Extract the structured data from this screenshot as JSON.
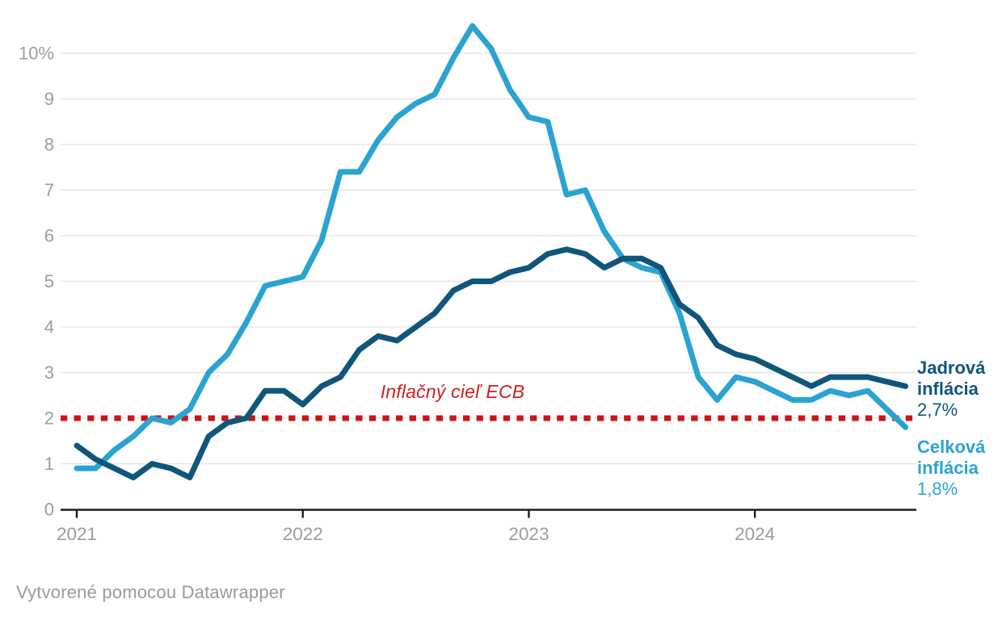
{
  "colors": {
    "headline_line": "#2BA3D2",
    "core_line": "#0F567A",
    "target_red": "#CC1414",
    "target_text_red": "#CF2020",
    "grid": "#E5E5E5",
    "axis_line": "#1A1C1F",
    "axis_text": "#9C9C9C",
    "footer_text": "#9A9A9A"
  },
  "chart_data": {
    "type": "line",
    "title": "",
    "xlabel": "",
    "ylabel": "",
    "x_unit": "month",
    "x_start": "2021-01",
    "x_tick_labels": [
      "2021",
      "2022",
      "2023",
      "2024"
    ],
    "x_tick_month_index": [
      0,
      12,
      24,
      36
    ],
    "y_ticks": [
      0,
      1,
      2,
      3,
      4,
      5,
      6,
      7,
      8,
      9,
      10
    ],
    "y_tick_labels": [
      "0",
      "1",
      "2",
      "3",
      "4",
      "5",
      "6",
      "7",
      "8",
      "9",
      "10%"
    ],
    "ylim": [
      0,
      10.7
    ],
    "grid": "horizontal",
    "legend_position": "end-of-line-labels-right",
    "series": [
      {
        "id": "celkova",
        "name": "Celková inflácia",
        "color": "#2BA3D2",
        "end_label": "Celková inflácia",
        "end_value_label": "1,8%",
        "values": [
          0.9,
          0.9,
          1.3,
          1.6,
          2.0,
          1.9,
          2.2,
          3.0,
          3.4,
          4.1,
          4.9,
          5.0,
          5.1,
          5.9,
          7.4,
          7.4,
          8.1,
          8.6,
          8.9,
          9.1,
          9.9,
          10.6,
          10.1,
          9.2,
          8.6,
          8.5,
          6.9,
          7.0,
          6.1,
          5.5,
          5.3,
          5.2,
          4.3,
          2.9,
          2.4,
          2.9,
          2.8,
          2.6,
          2.4,
          2.4,
          2.6,
          2.5,
          2.6,
          2.2,
          1.8
        ]
      },
      {
        "id": "jadrova",
        "name": "Jadrová inflácia",
        "color": "#0F567A",
        "end_label": "Jadrová inflácia",
        "end_value_label": "2,7%",
        "values": [
          1.4,
          1.1,
          0.9,
          0.7,
          1.0,
          0.9,
          0.7,
          1.6,
          1.9,
          2.0,
          2.6,
          2.6,
          2.3,
          2.7,
          2.9,
          3.5,
          3.8,
          3.7,
          4.0,
          4.3,
          4.8,
          5.0,
          5.0,
          5.2,
          5.3,
          5.6,
          5.7,
          5.6,
          5.3,
          5.5,
          5.5,
          5.3,
          4.5,
          4.2,
          3.6,
          3.4,
          3.3,
          3.1,
          2.9,
          2.7,
          2.9,
          2.9,
          2.9,
          2.8,
          2.7
        ]
      }
    ],
    "target_line": {
      "value": 2,
      "label": "Inflačný cieľ ECB",
      "color": "#CC1414"
    }
  },
  "footer": {
    "attribution": "Vytvorené pomocou Datawrapper"
  }
}
